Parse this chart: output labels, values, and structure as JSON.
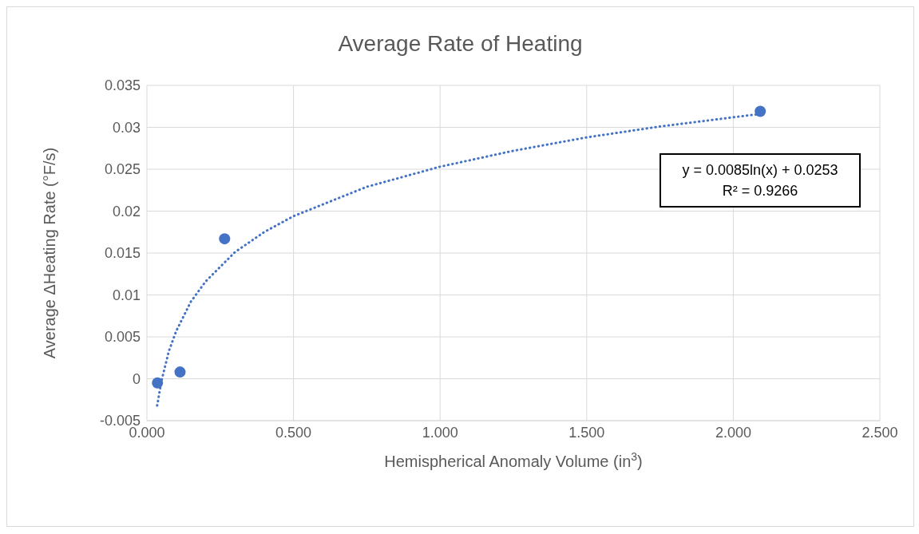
{
  "chart_data": {
    "type": "scatter",
    "title": "Average Rate of Heating",
    "xlabel": "Hemispherical Anomaly Volume (in$^{3}$)",
    "ylabel": "Average ΔHeating Rate (°F/s)",
    "series": [
      {
        "color": "#4472c4",
        "marker": "circle",
        "x": [
          0.036,
          0.113,
          0.265,
          2.092
        ],
        "values": [
          -0.0005,
          0.0008,
          0.0167,
          0.0319
        ]
      },
      {
        "type": "line",
        "color": "#4472c4",
        "line_style": "dotted",
        "marker": "none",
        "x": [
          0.035,
          0.05,
          0.075,
          0.1,
          0.15,
          0.2,
          0.3,
          0.4,
          0.5,
          0.75,
          1.0,
          1.25,
          1.5,
          1.75,
          2.092
        ],
        "values": [
          -0.0032,
          -0.0002,
          0.0033,
          0.0057,
          0.0092,
          0.0116,
          0.0151,
          0.0175,
          0.0194,
          0.0229,
          0.0253,
          0.0272,
          0.0288,
          0.0301,
          0.0316
        ]
      }
    ],
    "xlim": [
      0,
      2.5
    ],
    "xticks": [
      {
        "value": 0,
        "label": "0.000"
      },
      {
        "value": 0.5,
        "label": "0.500"
      },
      {
        "value": 1,
        "label": "1.000"
      },
      {
        "value": 1.5,
        "label": "1.500"
      },
      {
        "value": 2,
        "label": "2.000"
      },
      {
        "value": 2.5,
        "label": "2.500"
      }
    ],
    "ylim": [
      -0.005,
      0.035
    ],
    "yticks": [
      -0.005,
      0,
      0.005,
      0.01,
      0.015,
      0.02,
      0.025,
      0.03,
      0.035
    ],
    "grid": true,
    "annotations": [
      "y = 0.0085ln(x) + 0.0253",
      "R² = 0.9266"
    ]
  }
}
